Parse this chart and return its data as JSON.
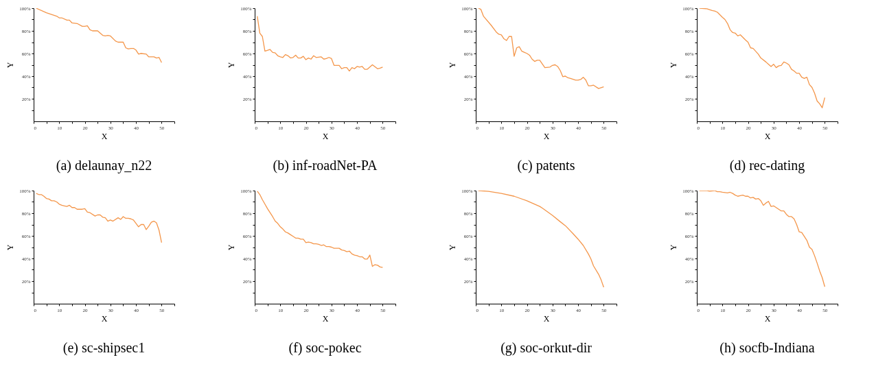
{
  "chart_data": [
    {
      "type": "line",
      "title": "(a) delaunay_n22",
      "xlabel": "X",
      "ylabel": "Y",
      "grid": false,
      "xlim": [
        0,
        55
      ],
      "ylim": [
        0,
        100
      ],
      "xticks": [
        0,
        {
          "value": 5,
          "label": null
        },
        10,
        {
          "value": 15,
          "label": null
        },
        20,
        {
          "value": 25,
          "label": null
        },
        30,
        {
          "value": 35,
          "label": null
        },
        40,
        {
          "value": 45,
          "label": null
        },
        50,
        {
          "value": 55,
          "label": null
        }
      ],
      "yticks": [
        {
          "value": 10,
          "label": null
        },
        {
          "value": 20,
          "label": "20%"
        },
        {
          "value": 30,
          "label": null
        },
        {
          "value": 40,
          "label": "40%"
        },
        {
          "value": 50,
          "label": null
        },
        {
          "value": 60,
          "label": "60%"
        },
        {
          "value": 70,
          "label": null
        },
        {
          "value": 80,
          "label": "80%"
        },
        {
          "value": 90,
          "label": null
        },
        {
          "value": 100,
          "label": "100%"
        }
      ],
      "series": [
        {
          "color": "#f4964a",
          "x": [
            1,
            5,
            9,
            10,
            11,
            13,
            14,
            15,
            17,
            19,
            20,
            21,
            22,
            23,
            25,
            27,
            28,
            29,
            30,
            32,
            33,
            35,
            36,
            37,
            38,
            39,
            40,
            41,
            42,
            44,
            45,
            47,
            48,
            49,
            50
          ],
          "values": [
            100,
            96,
            93,
            91.5,
            91.5,
            89.5,
            89.5,
            87,
            86.5,
            84,
            84,
            84.5,
            81,
            80,
            80,
            76,
            75.5,
            76,
            75.5,
            71,
            70,
            70,
            65,
            64,
            64.5,
            64.5,
            63,
            59.5,
            60,
            59.5,
            57,
            57,
            56,
            56.5,
            52
          ]
        }
      ]
    },
    {
      "type": "line",
      "title": "(b) inf-roadNet-PA",
      "xlabel": "X",
      "ylabel": "Y",
      "grid": false,
      "xlim": [
        0,
        55
      ],
      "ylim": [
        0,
        100
      ],
      "xticks": [
        0,
        {
          "value": 5,
          "label": null
        },
        10,
        {
          "value": 15,
          "label": null
        },
        20,
        {
          "value": 25,
          "label": null
        },
        30,
        {
          "value": 35,
          "label": null
        },
        40,
        {
          "value": 45,
          "label": null
        },
        50,
        {
          "value": 55,
          "label": null
        }
      ],
      "yticks": [
        {
          "value": 10,
          "label": null
        },
        {
          "value": 20,
          "label": "20%"
        },
        {
          "value": 30,
          "label": null
        },
        {
          "value": 40,
          "label": "40%"
        },
        {
          "value": 50,
          "label": null
        },
        {
          "value": 60,
          "label": "60%"
        },
        {
          "value": 70,
          "label": null
        },
        {
          "value": 80,
          "label": "80%"
        },
        {
          "value": 90,
          "label": null
        },
        {
          "value": 100,
          "label": "100%"
        }
      ],
      "series": [
        {
          "color": "#f4964a",
          "x": [
            1,
            2,
            3,
            4,
            6,
            7,
            8,
            9,
            10,
            11,
            12,
            13,
            14,
            15,
            16,
            17,
            18,
            19,
            20,
            21,
            22,
            23,
            24,
            26,
            27,
            28,
            29,
            30,
            31,
            33,
            34,
            35,
            36,
            37,
            38,
            39,
            40,
            41,
            42,
            43,
            44,
            46,
            48,
            49,
            50
          ],
          "values": [
            93,
            78,
            75,
            62,
            63.5,
            61,
            60.5,
            58,
            57,
            56.5,
            59,
            58,
            56,
            56.5,
            58.5,
            56,
            56,
            57.5,
            54.5,
            56,
            55,
            58,
            56.5,
            57,
            55,
            55.5,
            56.5,
            55.5,
            49.5,
            49.5,
            46.5,
            47.5,
            47.5,
            44.5,
            47.5,
            46.5,
            48.5,
            48,
            48.5,
            46,
            46,
            50,
            46.5,
            47,
            48
          ]
        }
      ]
    },
    {
      "type": "line",
      "title": "(c) patents",
      "xlabel": "X",
      "ylabel": "Y",
      "grid": false,
      "xlim": [
        0,
        55
      ],
      "ylim": [
        0,
        100
      ],
      "xticks": [
        0,
        {
          "value": 5,
          "label": null
        },
        10,
        {
          "value": 15,
          "label": null
        },
        20,
        {
          "value": 25,
          "label": null
        },
        30,
        {
          "value": 35,
          "label": null
        },
        40,
        {
          "value": 45,
          "label": null
        },
        50,
        {
          "value": 55,
          "label": null
        }
      ],
      "yticks": [
        {
          "value": 10,
          "label": null
        },
        {
          "value": 20,
          "label": "20%"
        },
        {
          "value": 30,
          "label": null
        },
        {
          "value": 40,
          "label": "40%"
        },
        {
          "value": 50,
          "label": null
        },
        {
          "value": 60,
          "label": "60%"
        },
        {
          "value": 70,
          "label": null
        },
        {
          "value": 80,
          "label": "80%"
        },
        {
          "value": 90,
          "label": null
        },
        {
          "value": 100,
          "label": "100%"
        }
      ],
      "series": [
        {
          "color": "#f4964a",
          "x": [
            1,
            2,
            3,
            6,
            8,
            9,
            10,
            11,
            12,
            13,
            14,
            15,
            16,
            17,
            18,
            20,
            21,
            22,
            23,
            24,
            25,
            27,
            29,
            30,
            31,
            32,
            33,
            34,
            35,
            36,
            37,
            39,
            40,
            41,
            42,
            43,
            44,
            45,
            46,
            48,
            50
          ],
          "values": [
            100,
            99,
            93,
            85,
            79,
            77,
            76.5,
            73,
            71.5,
            75,
            75,
            57.5,
            65,
            66,
            62,
            60,
            58.5,
            55,
            53,
            54,
            54,
            47.5,
            48,
            49.5,
            50,
            48.5,
            45,
            39.5,
            40,
            38.5,
            38,
            36.5,
            36.5,
            37,
            39,
            36.5,
            31.5,
            31.5,
            32,
            29,
            30.5
          ]
        }
      ]
    },
    {
      "type": "line",
      "title": "(d) rec-dating",
      "xlabel": "X",
      "ylabel": "Y",
      "grid": false,
      "xlim": [
        0,
        55
      ],
      "ylim": [
        0,
        100
      ],
      "xticks": [
        0,
        {
          "value": 5,
          "label": null
        },
        10,
        {
          "value": 15,
          "label": null
        },
        20,
        {
          "value": 25,
          "label": null
        },
        30,
        {
          "value": 35,
          "label": null
        },
        40,
        {
          "value": 45,
          "label": null
        },
        50,
        {
          "value": 55,
          "label": null
        }
      ],
      "yticks": [
        {
          "value": 10,
          "label": null
        },
        {
          "value": 20,
          "label": "20%"
        },
        {
          "value": 30,
          "label": null
        },
        {
          "value": 40,
          "label": "40%"
        },
        {
          "value": 50,
          "label": null
        },
        {
          "value": 60,
          "label": "60%"
        },
        {
          "value": 70,
          "label": null
        },
        {
          "value": 80,
          "label": "80%"
        },
        {
          "value": 90,
          "label": null
        },
        {
          "value": 100,
          "label": "100%"
        }
      ],
      "series": [
        {
          "color": "#f4964a",
          "x": [
            1,
            4,
            6,
            7,
            8,
            10,
            11,
            12,
            13,
            14,
            15,
            16,
            17,
            19,
            20,
            21,
            22,
            24,
            25,
            27,
            28,
            29,
            30,
            31,
            32,
            33,
            34,
            35,
            36,
            37,
            38,
            39,
            40,
            41,
            42,
            43,
            44,
            45,
            46,
            47,
            48,
            49,
            50
          ],
          "values": [
            100,
            99.5,
            98,
            97.5,
            96.5,
            92,
            90,
            86.5,
            81,
            78.5,
            78,
            75.5,
            76.5,
            72,
            70,
            65,
            64.5,
            59.5,
            56,
            52.5,
            50.5,
            48.5,
            50.5,
            47.5,
            49,
            49.5,
            52.5,
            51.5,
            50,
            46,
            44.5,
            42.5,
            42.5,
            39,
            38,
            39,
            32.5,
            30,
            25,
            18,
            15.5,
            12,
            21
          ]
        }
      ]
    },
    {
      "type": "line",
      "title": "(e) sc-shipsec1",
      "xlabel": "X",
      "ylabel": "Y",
      "grid": false,
      "xlim": [
        0,
        55
      ],
      "ylim": [
        0,
        100
      ],
      "xticks": [
        0,
        {
          "value": 5,
          "label": null
        },
        10,
        {
          "value": 15,
          "label": null
        },
        20,
        {
          "value": 25,
          "label": null
        },
        30,
        {
          "value": 35,
          "label": null
        },
        40,
        {
          "value": 45,
          "label": null
        },
        50,
        {
          "value": 55,
          "label": null
        }
      ],
      "yticks": [
        {
          "value": 10,
          "label": null
        },
        {
          "value": 20,
          "label": "20%"
        },
        {
          "value": 30,
          "label": null
        },
        {
          "value": 40,
          "label": "40%"
        },
        {
          "value": 50,
          "label": null
        },
        {
          "value": 60,
          "label": "60%"
        },
        {
          "value": 70,
          "label": null
        },
        {
          "value": 80,
          "label": "80%"
        },
        {
          "value": 90,
          "label": null
        },
        {
          "value": 100,
          "label": "100%"
        }
      ],
      "series": [
        {
          "color": "#f4964a",
          "x": [
            1,
            2,
            3,
            4,
            5,
            6,
            7,
            8,
            9,
            10,
            11,
            12,
            13,
            14,
            15,
            16,
            17,
            18,
            19,
            20,
            21,
            22,
            24,
            25,
            26,
            27,
            28,
            29,
            30,
            31,
            33,
            34,
            35,
            36,
            37,
            38,
            39,
            40,
            41,
            42,
            43,
            44,
            45,
            46,
            47,
            48,
            49,
            50
          ],
          "values": [
            97.5,
            96.5,
            96.5,
            95,
            93,
            92.5,
            91,
            91,
            90,
            88,
            87,
            86.5,
            86,
            87,
            85,
            85,
            83.5,
            83.5,
            83.5,
            84,
            81,
            80.5,
            77.5,
            78.5,
            78.5,
            76.5,
            76,
            73,
            74,
            73,
            76,
            74.5,
            77,
            75.5,
            75.5,
            75,
            74,
            71,
            68,
            70,
            70,
            65.5,
            68.5,
            72,
            73,
            71.5,
            65,
            54
          ]
        }
      ]
    },
    {
      "type": "line",
      "title": "(f) soc-pokec",
      "xlabel": "X",
      "ylabel": "Y",
      "grid": false,
      "xlim": [
        0,
        55
      ],
      "ylim": [
        0,
        100
      ],
      "xticks": [
        0,
        {
          "value": 5,
          "label": null
        },
        10,
        {
          "value": 15,
          "label": null
        },
        20,
        {
          "value": 25,
          "label": null
        },
        30,
        {
          "value": 35,
          "label": null
        },
        40,
        {
          "value": 45,
          "label": null
        },
        50,
        {
          "value": 55,
          "label": null
        }
      ],
      "yticks": [
        {
          "value": 10,
          "label": null
        },
        {
          "value": 20,
          "label": "20%"
        },
        {
          "value": 30,
          "label": null
        },
        {
          "value": 40,
          "label": "40%"
        },
        {
          "value": 50,
          "label": null
        },
        {
          "value": 60,
          "label": "60%"
        },
        {
          "value": 70,
          "label": null
        },
        {
          "value": 80,
          "label": "80%"
        },
        {
          "value": 90,
          "label": null
        },
        {
          "value": 100,
          "label": "100%"
        }
      ],
      "series": [
        {
          "color": "#f4964a",
          "x": [
            1,
            2,
            3,
            4,
            5,
            6,
            7,
            8,
            9,
            10,
            11,
            12,
            13,
            14,
            15,
            16,
            17,
            18,
            19,
            20,
            21,
            22,
            23,
            24,
            25,
            26,
            27,
            28,
            29,
            30,
            31,
            33,
            34,
            35,
            36,
            37,
            38,
            39,
            40,
            41,
            42,
            43,
            44,
            45,
            46,
            47,
            48,
            49,
            50
          ],
          "values": [
            99.5,
            96.5,
            92,
            88,
            84,
            80.5,
            77,
            73,
            71,
            68,
            66,
            63.5,
            62.5,
            61,
            59.5,
            58,
            58,
            57,
            57,
            54,
            54.5,
            54,
            53,
            53,
            52.5,
            51.5,
            52,
            50.5,
            50.5,
            50,
            49,
            49,
            47.5,
            47,
            46,
            46.5,
            44,
            43,
            42.5,
            41.5,
            41.5,
            39.5,
            39.5,
            43,
            33,
            34.5,
            34,
            32.5,
            32
          ]
        }
      ]
    },
    {
      "type": "line",
      "title": "(g) soc-orkut-dir",
      "xlabel": "X",
      "ylabel": "Y",
      "grid": false,
      "xlim": [
        0,
        55
      ],
      "ylim": [
        0,
        100
      ],
      "xticks": [
        0,
        {
          "value": 5,
          "label": null
        },
        10,
        {
          "value": 15,
          "label": null
        },
        20,
        {
          "value": 25,
          "label": null
        },
        30,
        {
          "value": 35,
          "label": null
        },
        40,
        {
          "value": 45,
          "label": null
        },
        50,
        {
          "value": 55,
          "label": null
        }
      ],
      "yticks": [
        {
          "value": 10,
          "label": null
        },
        {
          "value": 20,
          "label": "20%"
        },
        {
          "value": 30,
          "label": null
        },
        {
          "value": 40,
          "label": "40%"
        },
        {
          "value": 50,
          "label": null
        },
        {
          "value": 60,
          "label": "60%"
        },
        {
          "value": 70,
          "label": null
        },
        {
          "value": 80,
          "label": "80%"
        },
        {
          "value": 90,
          "label": null
        },
        {
          "value": 100,
          "label": "100%"
        }
      ],
      "series": [
        {
          "color": "#f4964a",
          "x": [
            1,
            5,
            10,
            15,
            20,
            25,
            26,
            30,
            33,
            35,
            38,
            40,
            42,
            44,
            45,
            46,
            48,
            49,
            50
          ],
          "values": [
            100,
            99.3,
            97.5,
            95,
            91,
            86,
            84.5,
            78,
            72.5,
            69,
            62,
            57,
            51.5,
            44,
            39.5,
            33.5,
            26,
            21,
            14.5
          ]
        }
      ]
    },
    {
      "type": "line",
      "title": "(h) socfb-Indiana",
      "xlabel": "X",
      "ylabel": "Y",
      "grid": false,
      "xlim": [
        0,
        55
      ],
      "ylim": [
        0,
        100
      ],
      "xticks": [
        0,
        {
          "value": 5,
          "label": null
        },
        10,
        {
          "value": 15,
          "label": null
        },
        20,
        {
          "value": 25,
          "label": null
        },
        30,
        {
          "value": 35,
          "label": null
        },
        40,
        {
          "value": 45,
          "label": null
        },
        50,
        {
          "value": 55,
          "label": null
        }
      ],
      "yticks": [
        {
          "value": 10,
          "label": null
        },
        {
          "value": 20,
          "label": "20%"
        },
        {
          "value": 30,
          "label": null
        },
        {
          "value": 40,
          "label": "40%"
        },
        {
          "value": 50,
          "label": null
        },
        {
          "value": 60,
          "label": "60%"
        },
        {
          "value": 70,
          "label": null
        },
        {
          "value": 80,
          "label": "80%"
        },
        {
          "value": 90,
          "label": null
        },
        {
          "value": 100,
          "label": "100%"
        }
      ],
      "series": [
        {
          "color": "#f4964a",
          "x": [
            1,
            4,
            5,
            7,
            8,
            9,
            10,
            12,
            13,
            14,
            15,
            16,
            17,
            18,
            19,
            20,
            21,
            22,
            23,
            24,
            25,
            26,
            27,
            28,
            29,
            30,
            31,
            32,
            33,
            34,
            35,
            36,
            37,
            38,
            39,
            40,
            41,
            42,
            43,
            44,
            45,
            46,
            47,
            48,
            49,
            50
          ],
          "values": [
            100,
            100,
            99.5,
            100,
            99,
            99,
            98.5,
            98,
            98.5,
            97.5,
            96,
            95,
            95.5,
            96,
            95,
            95,
            93.5,
            94,
            92.5,
            93,
            91,
            87,
            89,
            90.5,
            86,
            86.5,
            85,
            83.5,
            82,
            82,
            79,
            77,
            77,
            75,
            70,
            63.5,
            63,
            59.5,
            56,
            50,
            48,
            42.5,
            36,
            29,
            23,
            15
          ]
        }
      ]
    }
  ]
}
